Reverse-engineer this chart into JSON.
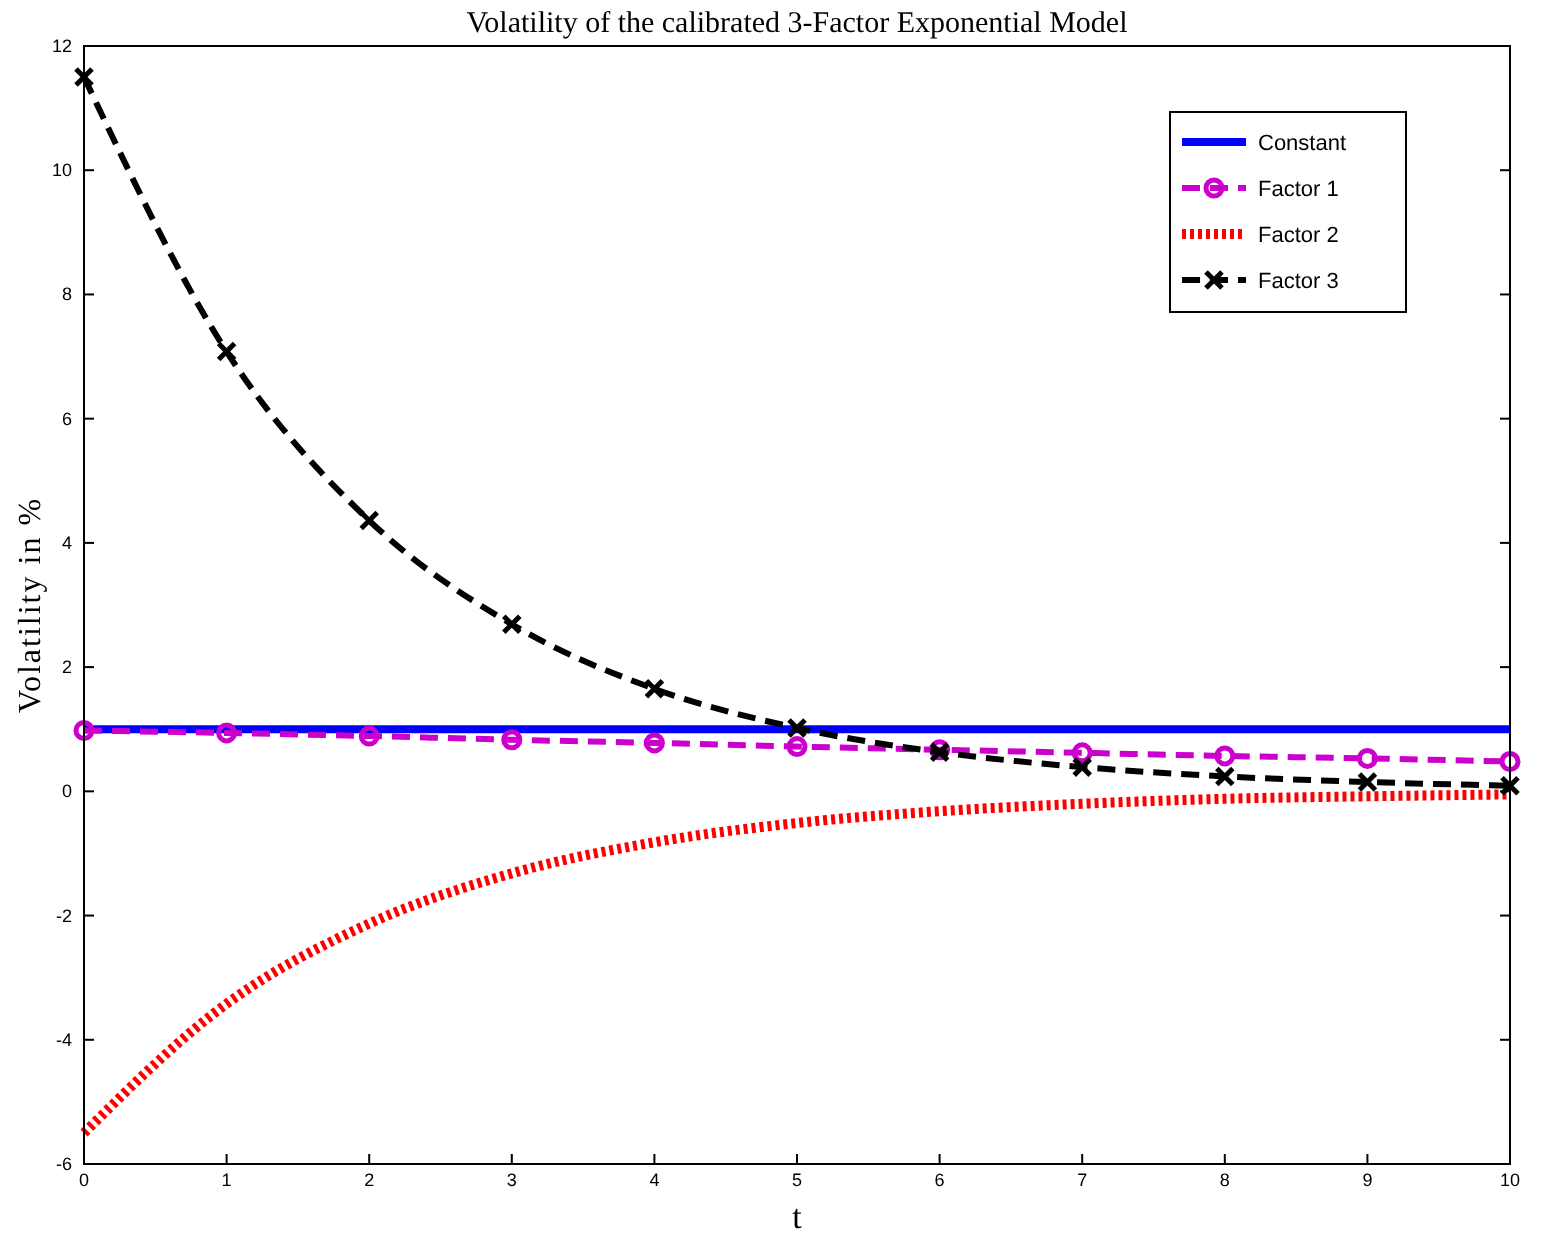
{
  "chart_data": {
    "type": "line",
    "title": "Volatility of the calibrated 3-Factor Exponential Model",
    "xlabel": "t",
    "ylabel": "Volatility in %",
    "x": [
      0,
      1,
      2,
      3,
      4,
      5,
      6,
      7,
      8,
      9,
      10
    ],
    "xlim": [
      0,
      10
    ],
    "xticks": [
      0,
      1,
      2,
      3,
      4,
      5,
      6,
      7,
      8,
      9,
      10
    ],
    "ylim": [
      -6,
      12
    ],
    "yticks": [
      -6,
      -4,
      -2,
      0,
      2,
      4,
      6,
      8,
      10,
      12
    ],
    "grid": false,
    "legend": "top right",
    "series": [
      {
        "name": "Constant",
        "color": "#0000ff",
        "line_style": "solid",
        "marker": "none",
        "values": [
          1,
          1,
          1,
          1,
          1,
          1,
          1,
          1,
          1,
          1,
          1
        ]
      },
      {
        "name": "Factor 1",
        "color": "#cc00cc",
        "line_style": "dashed",
        "marker": "circle",
        "values": [
          0.98,
          0.94,
          0.89,
          0.83,
          0.78,
          0.72,
          0.67,
          0.62,
          0.57,
          0.53,
          0.48
        ]
      },
      {
        "name": "Factor 2",
        "color": "#ff0000",
        "line_style": "dotted",
        "marker": "none",
        "values": [
          -5.5,
          -3.42,
          -2.13,
          -1.32,
          -0.82,
          -0.51,
          -0.32,
          -0.2,
          -0.12,
          -0.08,
          -0.05
        ]
      },
      {
        "name": "Factor 3",
        "color": "#000000",
        "line_style": "dashed",
        "marker": "cross",
        "values": [
          11.5,
          7.08,
          4.36,
          2.69,
          1.65,
          1.02,
          0.63,
          0.39,
          0.24,
          0.15,
          0.09
        ]
      }
    ]
  }
}
